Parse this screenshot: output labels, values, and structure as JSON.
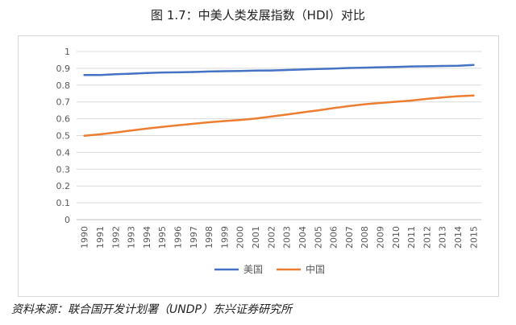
{
  "chart_data": {
    "type": "line",
    "title": "图 1.7：中美人类发展指数（HDI）对比",
    "categories": [
      "1990",
      "1991",
      "1992",
      "1993",
      "1994",
      "1995",
      "1996",
      "1997",
      "1998",
      "1999",
      "2000",
      "2001",
      "2002",
      "2003",
      "2004",
      "2005",
      "2006",
      "2007",
      "2008",
      "2009",
      "2010",
      "2011",
      "2012",
      "2013",
      "2014",
      "2015"
    ],
    "ylim": [
      0,
      1
    ],
    "yticks": [
      "0",
      "0.1",
      "0.2",
      "0.3",
      "0.4",
      "0.5",
      "0.6",
      "0.7",
      "0.8",
      "0.9",
      "1"
    ],
    "grid": true,
    "legend_position": "bottom",
    "series": [
      {
        "name": "美国",
        "color": "#4472c4",
        "values": [
          0.86,
          0.86,
          0.865,
          0.868,
          0.872,
          0.875,
          0.876,
          0.878,
          0.881,
          0.883,
          0.884,
          0.886,
          0.887,
          0.89,
          0.893,
          0.896,
          0.898,
          0.902,
          0.904,
          0.906,
          0.908,
          0.911,
          0.912,
          0.914,
          0.915,
          0.92
        ]
      },
      {
        "name": "中国",
        "color": "#ed7d31",
        "values": [
          0.499,
          0.507,
          0.518,
          0.53,
          0.541,
          0.551,
          0.561,
          0.57,
          0.579,
          0.586,
          0.593,
          0.601,
          0.613,
          0.625,
          0.638,
          0.65,
          0.663,
          0.675,
          0.686,
          0.694,
          0.701,
          0.708,
          0.718,
          0.727,
          0.734,
          0.738
        ]
      }
    ]
  },
  "footer": {
    "source": "资料来源：联合国开发计划署（UNDP）东兴证券研究所"
  }
}
